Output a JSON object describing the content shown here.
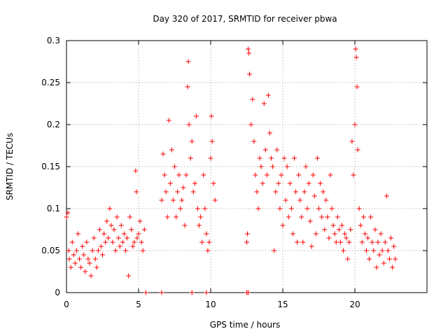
{
  "chart_data": {
    "type": "scatter",
    "title": "Day 320 of 2017, SRMTID for receiver pbwa",
    "xlabel": "GPS time / hours",
    "ylabel": "SRMTID / TECUs",
    "xlim": [
      0,
      25
    ],
    "ylim": [
      0,
      0.3
    ],
    "x_ticks": [
      0,
      5,
      10,
      15,
      20
    ],
    "x_tick_labels": [
      "0",
      "5",
      "10",
      "15",
      "20"
    ],
    "y_ticks": [
      0,
      0.05,
      0.1,
      0.15,
      0.2,
      0.25,
      0.3
    ],
    "y_tick_labels": [
      "0",
      "0.05",
      "0.1",
      "0.15",
      "0.2",
      "0.25",
      "0.3"
    ],
    "grid": true,
    "marker": "+",
    "color": "#ff0000",
    "series": [
      {
        "name": "SRMTID",
        "points": [
          [
            0.0,
            0.09
          ],
          [
            0.1,
            0.095
          ],
          [
            0.15,
            0.05
          ],
          [
            0.2,
            0.04
          ],
          [
            0.3,
            0.03
          ],
          [
            0.4,
            0.06
          ],
          [
            0.5,
            0.045
          ],
          [
            0.6,
            0.035
          ],
          [
            0.7,
            0.05
          ],
          [
            0.8,
            0.07
          ],
          [
            0.9,
            0.04
          ],
          [
            1.0,
            0.03
          ],
          [
            1.1,
            0.055
          ],
          [
            1.2,
            0.045
          ],
          [
            1.3,
            0.025
          ],
          [
            1.4,
            0.06
          ],
          [
            1.5,
            0.04
          ],
          [
            1.6,
            0.035
          ],
          [
            1.7,
            0.02
          ],
          [
            1.8,
            0.05
          ],
          [
            1.9,
            0.065
          ],
          [
            2.0,
            0.04
          ],
          [
            2.1,
            0.03
          ],
          [
            2.2,
            0.05
          ],
          [
            2.3,
            0.075
          ],
          [
            2.4,
            0.055
          ],
          [
            2.5,
            0.045
          ],
          [
            2.6,
            0.07
          ],
          [
            2.7,
            0.06
          ],
          [
            2.8,
            0.085
          ],
          [
            2.9,
            0.065
          ],
          [
            3.0,
            0.1
          ],
          [
            3.1,
            0.08
          ],
          [
            3.2,
            0.06
          ],
          [
            3.3,
            0.075
          ],
          [
            3.4,
            0.05
          ],
          [
            3.5,
            0.09
          ],
          [
            3.6,
            0.065
          ],
          [
            3.7,
            0.055
          ],
          [
            3.8,
            0.08
          ],
          [
            3.9,
            0.06
          ],
          [
            4.0,
            0.07
          ],
          [
            4.1,
            0.05
          ],
          [
            4.2,
            0.065
          ],
          [
            4.3,
            0.02
          ],
          [
            4.4,
            0.09
          ],
          [
            4.5,
            0.075
          ],
          [
            4.6,
            0.055
          ],
          [
            4.7,
            0.06
          ],
          [
            4.8,
            0.145
          ],
          [
            4.85,
            0.12
          ],
          [
            4.9,
            0.065
          ],
          [
            5.0,
            0.07
          ],
          [
            5.1,
            0.085
          ],
          [
            5.2,
            0.06
          ],
          [
            5.3,
            0.05
          ],
          [
            5.4,
            0.075
          ],
          [
            5.5,
            0.0
          ],
          [
            6.6,
            0.0
          ],
          [
            8.7,
            0.0
          ],
          [
            9.7,
            0.0
          ],
          [
            12.5,
            0.0
          ],
          [
            12.6,
            0.0
          ],
          [
            6.6,
            0.11
          ],
          [
            6.7,
            0.165
          ],
          [
            6.8,
            0.14
          ],
          [
            6.9,
            0.12
          ],
          [
            7.0,
            0.09
          ],
          [
            7.1,
            0.205
          ],
          [
            7.2,
            0.13
          ],
          [
            7.3,
            0.17
          ],
          [
            7.4,
            0.11
          ],
          [
            7.5,
            0.15
          ],
          [
            7.6,
            0.09
          ],
          [
            7.7,
            0.12
          ],
          [
            7.8,
            0.14
          ],
          [
            7.9,
            0.1
          ],
          [
            8.0,
            0.11
          ],
          [
            8.1,
            0.125
          ],
          [
            8.2,
            0.08
          ],
          [
            8.3,
            0.14
          ],
          [
            8.4,
            0.245
          ],
          [
            8.45,
            0.275
          ],
          [
            8.5,
            0.2
          ],
          [
            8.6,
            0.16
          ],
          [
            8.7,
            0.18
          ],
          [
            8.8,
            0.12
          ],
          [
            8.9,
            0.13
          ],
          [
            9.0,
            0.21
          ],
          [
            9.1,
            0.1
          ],
          [
            9.2,
            0.08
          ],
          [
            9.3,
            0.09
          ],
          [
            9.4,
            0.06
          ],
          [
            9.5,
            0.14
          ],
          [
            9.6,
            0.1
          ],
          [
            9.7,
            0.07
          ],
          [
            9.8,
            0.05
          ],
          [
            9.9,
            0.06
          ],
          [
            10.0,
            0.16
          ],
          [
            10.05,
            0.21
          ],
          [
            10.1,
            0.18
          ],
          [
            10.2,
            0.13
          ],
          [
            10.3,
            0.11
          ],
          [
            12.5,
            0.06
          ],
          [
            12.55,
            0.07
          ],
          [
            12.6,
            0.29
          ],
          [
            12.65,
            0.285
          ],
          [
            12.7,
            0.26
          ],
          [
            12.8,
            0.2
          ],
          [
            12.9,
            0.23
          ],
          [
            13.0,
            0.18
          ],
          [
            13.1,
            0.14
          ],
          [
            13.2,
            0.12
          ],
          [
            13.3,
            0.1
          ],
          [
            13.4,
            0.16
          ],
          [
            13.5,
            0.15
          ],
          [
            13.6,
            0.13
          ],
          [
            13.7,
            0.225
          ],
          [
            13.8,
            0.17
          ],
          [
            13.9,
            0.14
          ],
          [
            14.0,
            0.235
          ],
          [
            14.1,
            0.19
          ],
          [
            14.2,
            0.16
          ],
          [
            14.3,
            0.15
          ],
          [
            14.4,
            0.05
          ],
          [
            14.5,
            0.12
          ],
          [
            14.6,
            0.17
          ],
          [
            14.7,
            0.13
          ],
          [
            14.8,
            0.1
          ],
          [
            14.9,
            0.14
          ],
          [
            15.0,
            0.08
          ],
          [
            15.1,
            0.16
          ],
          [
            15.2,
            0.11
          ],
          [
            15.3,
            0.15
          ],
          [
            15.4,
            0.09
          ],
          [
            15.5,
            0.13
          ],
          [
            15.6,
            0.1
          ],
          [
            15.7,
            0.07
          ],
          [
            15.8,
            0.16
          ],
          [
            15.9,
            0.12
          ],
          [
            16.0,
            0.06
          ],
          [
            16.1,
            0.14
          ],
          [
            16.2,
            0.11
          ],
          [
            16.3,
            0.09
          ],
          [
            16.4,
            0.06
          ],
          [
            16.5,
            0.12
          ],
          [
            16.6,
            0.15
          ],
          [
            16.7,
            0.1
          ],
          [
            16.8,
            0.13
          ],
          [
            16.9,
            0.085
          ],
          [
            17.0,
            0.055
          ],
          [
            17.1,
            0.14
          ],
          [
            17.2,
            0.115
          ],
          [
            17.3,
            0.07
          ],
          [
            17.4,
            0.16
          ],
          [
            17.5,
            0.1
          ],
          [
            17.6,
            0.13
          ],
          [
            17.7,
            0.09
          ],
          [
            17.8,
            0.12
          ],
          [
            17.9,
            0.075
          ],
          [
            18.0,
            0.11
          ],
          [
            18.1,
            0.09
          ],
          [
            18.2,
            0.065
          ],
          [
            18.3,
            0.14
          ],
          [
            18.4,
            0.1
          ],
          [
            18.5,
            0.08
          ],
          [
            18.6,
            0.07
          ],
          [
            18.7,
            0.06
          ],
          [
            18.8,
            0.09
          ],
          [
            18.9,
            0.075
          ],
          [
            19.0,
            0.06
          ],
          [
            19.1,
            0.08
          ],
          [
            19.2,
            0.05
          ],
          [
            19.3,
            0.07
          ],
          [
            19.4,
            0.065
          ],
          [
            19.5,
            0.04
          ],
          [
            19.6,
            0.06
          ],
          [
            19.7,
            0.075
          ],
          [
            19.8,
            0.18
          ],
          [
            19.9,
            0.14
          ],
          [
            20.0,
            0.2
          ],
          [
            20.05,
            0.29
          ],
          [
            20.1,
            0.28
          ],
          [
            20.15,
            0.245
          ],
          [
            20.2,
            0.17
          ],
          [
            20.3,
            0.1
          ],
          [
            20.4,
            0.08
          ],
          [
            20.5,
            0.06
          ],
          [
            20.6,
            0.09
          ],
          [
            20.7,
            0.07
          ],
          [
            20.8,
            0.05
          ],
          [
            20.9,
            0.065
          ],
          [
            21.0,
            0.04
          ],
          [
            21.1,
            0.09
          ],
          [
            21.2,
            0.06
          ],
          [
            21.3,
            0.05
          ],
          [
            21.4,
            0.075
          ],
          [
            21.5,
            0.03
          ],
          [
            21.6,
            0.06
          ],
          [
            21.7,
            0.045
          ],
          [
            21.8,
            0.07
          ],
          [
            21.9,
            0.05
          ],
          [
            22.0,
            0.035
          ],
          [
            22.1,
            0.06
          ],
          [
            22.2,
            0.115
          ],
          [
            22.3,
            0.05
          ],
          [
            22.4,
            0.04
          ],
          [
            22.5,
            0.065
          ],
          [
            22.6,
            0.03
          ],
          [
            22.7,
            0.055
          ],
          [
            22.8,
            0.04
          ]
        ]
      }
    ]
  }
}
